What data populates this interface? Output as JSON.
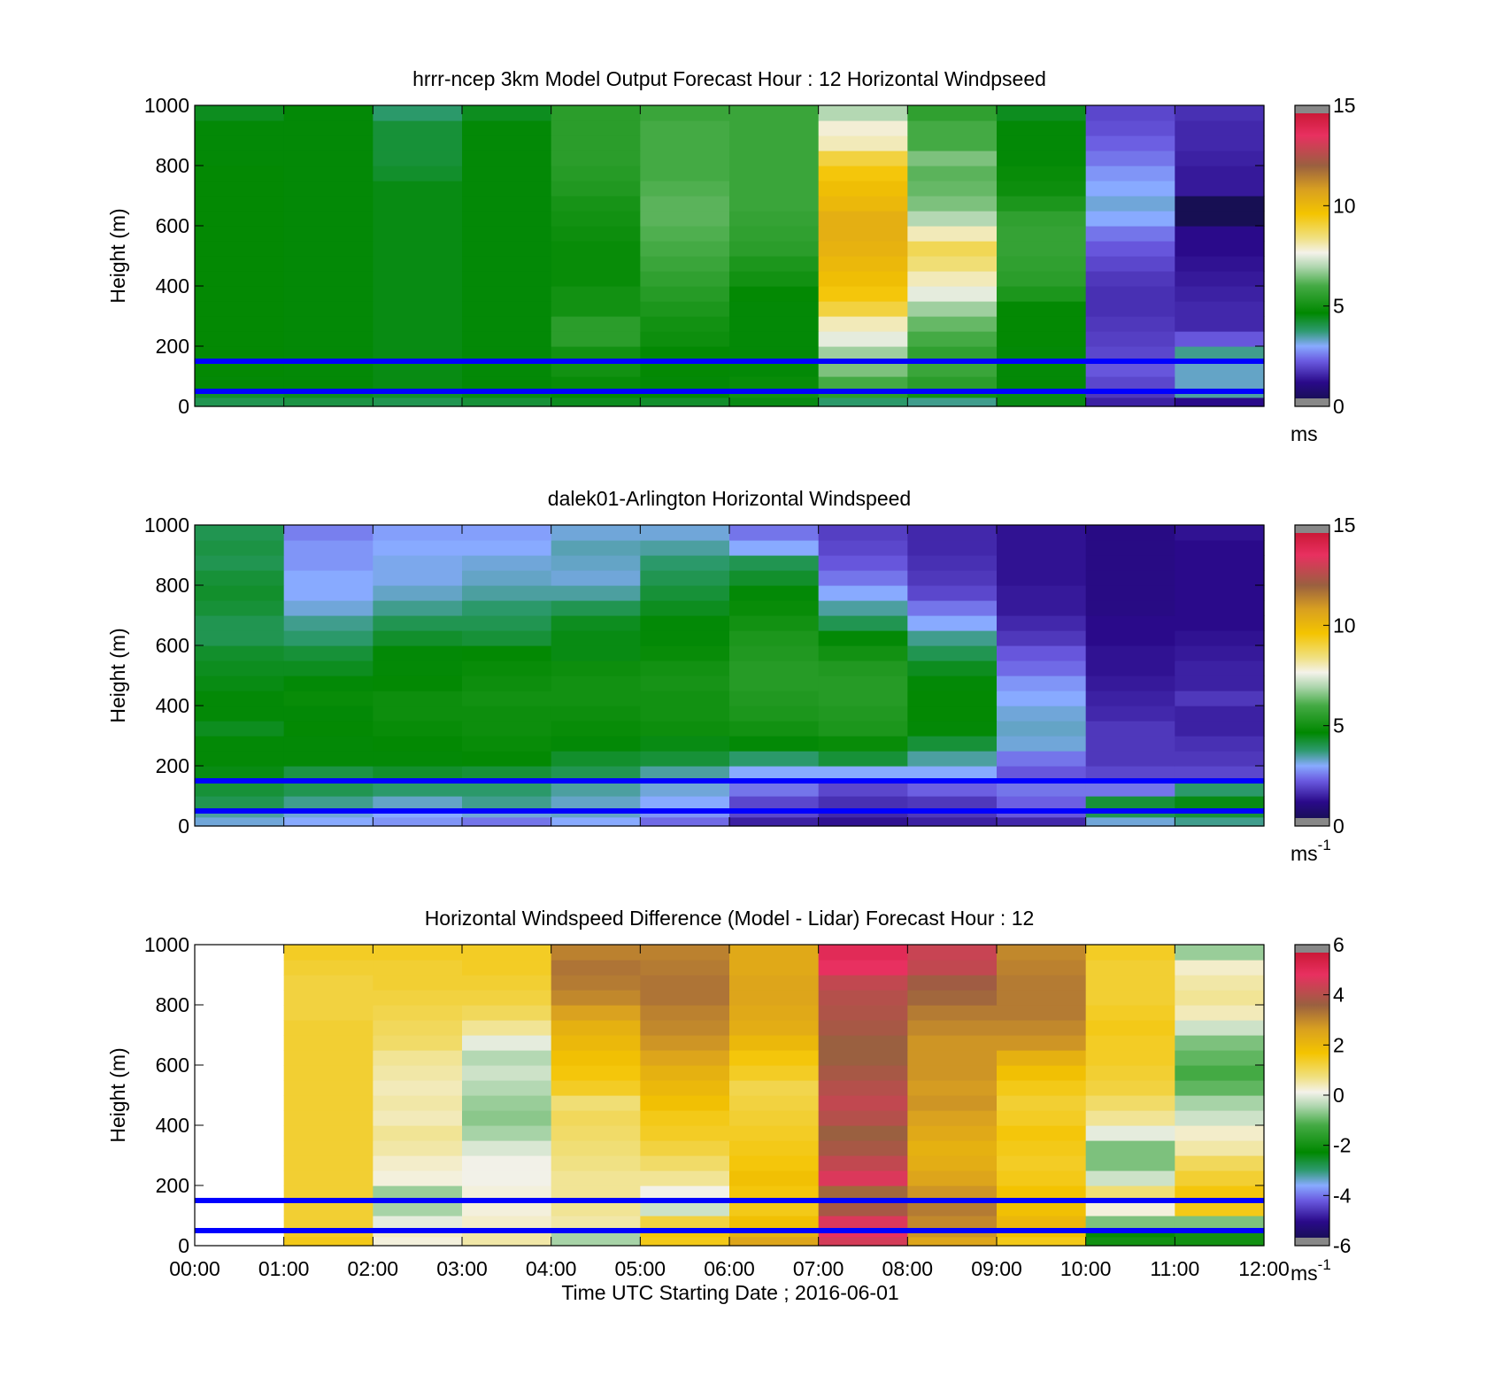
{
  "figure": {
    "xlabel": "Time UTC  Starting Date ; 2016-06-01",
    "x_ticks": [
      "00:00",
      "01:00",
      "02:00",
      "03:00",
      "04:00",
      "05:00",
      "06:00",
      "07:00",
      "08:00",
      "09:00",
      "10:00",
      "11:00",
      "12:00"
    ],
    "reference_heights_m": [
      50,
      150
    ],
    "reference_line_color": "#0000ff"
  },
  "chart_data": [
    {
      "type": "heatmap",
      "title": "hrrr-ncep 3km Model Output   Forecast Hour : 12 Horizontal Windpseed",
      "ylabel": "Height (m)",
      "ylim": [
        0,
        1000
      ],
      "y_ticks": [
        "0",
        "200",
        "400",
        "600",
        "800",
        "1000"
      ],
      "colorbar": {
        "range": [
          0,
          15
        ],
        "ticks": [
          "0",
          "5",
          "10",
          "15"
        ],
        "unit": "ms",
        "unit_sup": "",
        "colormap": "speed"
      },
      "x_hours": [
        0,
        1,
        2,
        3,
        4,
        5,
        6,
        7,
        8,
        9,
        10,
        11,
        12
      ],
      "z_levels_m": [
        0,
        30,
        60,
        100,
        150,
        200,
        250,
        300,
        350,
        400,
        450,
        500,
        550,
        600,
        650,
        700,
        750,
        800,
        850,
        900,
        950,
        1000
      ],
      "values": [
        [
          4.0,
          4.1,
          4.0,
          4.2,
          4.4,
          4.3,
          4.5,
          3.8,
          3.6,
          4.5,
          1.5,
          1.2
        ],
        [
          4.3,
          4.4,
          4.3,
          4.5,
          4.6,
          4.6,
          5.0,
          5.5,
          5.0,
          4.5,
          1.8,
          3.5
        ],
        [
          4.6,
          4.6,
          4.5,
          4.6,
          4.8,
          4.6,
          4.8,
          6.0,
          5.5,
          4.6,
          2.0,
          3.3
        ],
        [
          4.7,
          4.6,
          4.5,
          4.6,
          5.0,
          4.7,
          4.6,
          6.5,
          5.8,
          4.6,
          2.2,
          3.3
        ],
        [
          4.7,
          4.6,
          4.5,
          4.6,
          5.0,
          4.7,
          4.6,
          6.8,
          5.6,
          4.6,
          2.0,
          3.6
        ],
        [
          4.7,
          4.6,
          4.5,
          4.6,
          5.5,
          4.9,
          4.6,
          7.5,
          6.0,
          4.7,
          1.9,
          2.2
        ],
        [
          4.7,
          4.6,
          4.5,
          4.6,
          5.5,
          5.0,
          4.6,
          8.0,
          6.3,
          4.7,
          1.8,
          1.6
        ],
        [
          4.7,
          4.6,
          4.5,
          4.6,
          5.0,
          5.2,
          4.6,
          9.0,
          6.8,
          4.7,
          1.7,
          1.6
        ],
        [
          4.7,
          4.6,
          4.5,
          4.6,
          5.0,
          5.4,
          4.7,
          9.5,
          7.5,
          5.2,
          1.7,
          1.5
        ],
        [
          4.7,
          4.6,
          4.5,
          4.6,
          4.8,
          5.6,
          5.0,
          9.8,
          8.0,
          5.5,
          1.8,
          1.4
        ],
        [
          4.7,
          4.6,
          4.5,
          4.6,
          4.8,
          5.8,
          5.2,
          10.0,
          8.5,
          5.6,
          2.0,
          1.3
        ],
        [
          4.7,
          4.6,
          4.5,
          4.6,
          4.8,
          6.0,
          5.5,
          10.2,
          8.8,
          5.7,
          2.2,
          1.2
        ],
        [
          4.7,
          4.6,
          4.5,
          4.6,
          4.9,
          6.1,
          5.6,
          10.3,
          8.0,
          5.7,
          2.5,
          1.2
        ],
        [
          4.7,
          4.6,
          4.5,
          4.6,
          5.0,
          6.2,
          5.7,
          10.3,
          7.0,
          5.6,
          3.0,
          0.3
        ],
        [
          4.7,
          4.6,
          4.5,
          4.6,
          5.1,
          6.2,
          5.8,
          10.0,
          6.5,
          5.2,
          3.2,
          0.3
        ],
        [
          4.7,
          4.6,
          4.5,
          4.6,
          5.3,
          6.1,
          5.8,
          9.8,
          6.3,
          4.9,
          3.0,
          1.4
        ],
        [
          4.7,
          4.6,
          4.3,
          4.6,
          5.4,
          6.0,
          5.8,
          9.5,
          6.2,
          4.8,
          2.8,
          1.4
        ],
        [
          4.6,
          4.6,
          4.2,
          4.6,
          5.5,
          6.0,
          5.8,
          9.0,
          6.5,
          4.6,
          2.5,
          1.5
        ],
        [
          4.6,
          4.6,
          4.2,
          4.6,
          5.5,
          6.0,
          5.8,
          8.0,
          6.0,
          4.6,
          2.3,
          1.6
        ],
        [
          4.6,
          4.6,
          4.2,
          4.6,
          5.5,
          6.0,
          5.8,
          7.8,
          6.0,
          4.6,
          2.1,
          1.6
        ],
        [
          4.4,
          4.6,
          3.8,
          4.4,
          5.5,
          5.8,
          5.8,
          7.0,
          5.6,
          4.4,
          2.0,
          1.7
        ]
      ]
    },
    {
      "type": "heatmap",
      "title": "dalek01-Arlington  Horizontal Windspeed",
      "ylabel": "Height (m)",
      "ylim": [
        0,
        1000
      ],
      "y_ticks": [
        "0",
        "200",
        "400",
        "600",
        "800",
        "1000"
      ],
      "colorbar": {
        "range": [
          0,
          15
        ],
        "ticks": [
          "0",
          "5",
          "10",
          "15"
        ],
        "unit": "ms",
        "unit_sup": "-1",
        "colormap": "speed"
      },
      "x_hours": [
        0,
        1,
        2,
        3,
        4,
        5,
        6,
        7,
        8,
        9,
        10,
        11,
        12
      ],
      "z_levels_m": [
        0,
        30,
        60,
        100,
        150,
        200,
        250,
        300,
        350,
        400,
        450,
        500,
        550,
        600,
        650,
        700,
        750,
        800,
        850,
        900,
        950,
        1000
      ],
      "values": [
        [
          3.2,
          3.0,
          2.8,
          2.5,
          3.0,
          2.4,
          1.5,
          1.3,
          1.5,
          1.6,
          3.2,
          3.6
        ],
        [
          3.5,
          3.2,
          3.0,
          3.2,
          3.3,
          2.8,
          2.0,
          1.6,
          1.8,
          2.2,
          4.0,
          4.2
        ],
        [
          4.0,
          3.6,
          3.3,
          3.6,
          3.3,
          3.0,
          2.0,
          1.7,
          1.8,
          2.3,
          4.2,
          4.5
        ],
        [
          4.2,
          4.0,
          3.8,
          3.8,
          3.5,
          3.2,
          2.5,
          2.0,
          2.3,
          2.5,
          2.5,
          3.8
        ],
        [
          4.5,
          4.1,
          4.3,
          4.2,
          4.0,
          3.5,
          3.0,
          3.0,
          3.0,
          2.2,
          2.0,
          2.0
        ],
        [
          4.6,
          4.6,
          4.6,
          4.7,
          4.3,
          4.2,
          3.8,
          4.2,
          3.5,
          2.5,
          1.8,
          1.8
        ],
        [
          4.6,
          4.6,
          4.7,
          4.8,
          4.6,
          4.5,
          4.6,
          4.8,
          4.2,
          3.2,
          1.8,
          1.7
        ],
        [
          4.4,
          4.7,
          4.8,
          4.9,
          4.8,
          4.9,
          5.0,
          5.2,
          4.6,
          3.3,
          1.8,
          1.5
        ],
        [
          4.6,
          4.6,
          4.9,
          4.9,
          4.9,
          5.0,
          5.2,
          5.3,
          4.7,
          3.2,
          1.6,
          1.5
        ],
        [
          4.6,
          4.8,
          4.9,
          5.0,
          5.0,
          5.0,
          5.3,
          5.4,
          4.7,
          3.0,
          1.5,
          1.8
        ],
        [
          4.5,
          4.6,
          4.7,
          4.9,
          5.0,
          5.1,
          5.4,
          5.4,
          4.6,
          2.8,
          1.4,
          1.5
        ],
        [
          4.4,
          4.4,
          4.6,
          4.8,
          4.9,
          5.0,
          5.4,
          5.3,
          4.4,
          2.4,
          1.3,
          1.5
        ],
        [
          4.3,
          4.2,
          4.6,
          4.7,
          4.5,
          4.8,
          5.3,
          5.0,
          4.0,
          2.2,
          1.3,
          1.4
        ],
        [
          4.0,
          3.8,
          4.3,
          4.2,
          4.5,
          4.6,
          5.2,
          4.6,
          3.6,
          1.8,
          1.2,
          1.3
        ],
        [
          4.0,
          3.6,
          4.0,
          4.0,
          4.4,
          4.6,
          5.0,
          4.0,
          3.0,
          1.6,
          1.2,
          1.2
        ],
        [
          4.2,
          3.2,
          3.6,
          3.8,
          4.0,
          4.4,
          4.8,
          3.5,
          2.5,
          1.4,
          1.1,
          1.2
        ],
        [
          4.3,
          3.0,
          3.3,
          3.5,
          3.5,
          4.2,
          4.6,
          3.0,
          2.0,
          1.4,
          1.1,
          1.2
        ],
        [
          4.2,
          3.0,
          3.1,
          3.3,
          3.2,
          4.0,
          4.3,
          2.5,
          1.8,
          1.3,
          1.1,
          1.2
        ],
        [
          4.0,
          2.8,
          3.1,
          3.2,
          3.3,
          3.8,
          4.0,
          2.2,
          1.7,
          1.3,
          1.1,
          1.2
        ],
        [
          4.1,
          2.8,
          3.0,
          3.0,
          3.4,
          3.5,
          3.0,
          2.0,
          1.6,
          1.3,
          1.1,
          1.2
        ],
        [
          4.0,
          2.6,
          2.9,
          2.9,
          3.2,
          3.2,
          2.5,
          1.9,
          1.6,
          1.3,
          1.1,
          1.3
        ]
      ]
    },
    {
      "type": "heatmap",
      "title": "Horizontal Windspeed Difference (Model - Lidar) Forecast Hour : 12",
      "ylabel": "Height (m)",
      "ylim": [
        0,
        1000
      ],
      "y_ticks": [
        "0",
        "200",
        "400",
        "600",
        "800",
        "1000"
      ],
      "colorbar": {
        "range": [
          -6,
          6
        ],
        "ticks": [
          "-6",
          "-4",
          "-2",
          "0",
          "2",
          "4",
          "6"
        ],
        "unit": "ms",
        "unit_sup": "-1",
        "colormap": "diff"
      },
      "x_hours": [
        0,
        1,
        2,
        3,
        4,
        5,
        6,
        7,
        8,
        9,
        10,
        11,
        12
      ],
      "z_levels_m": [
        0,
        30,
        60,
        100,
        150,
        200,
        250,
        300,
        350,
        400,
        450,
        500,
        550,
        600,
        650,
        700,
        750,
        800,
        850,
        900,
        950,
        1000
      ],
      "values": [
        [
          null,
          1.5,
          0.2,
          0.5,
          -0.5,
          1.5,
          2.5,
          4.5,
          2.5,
          1.5,
          -2.0,
          -2.0
        ],
        [
          null,
          1.4,
          0.3,
          0.5,
          -0.5,
          1.6,
          2.2,
          4.8,
          2.8,
          1.8,
          -2.2,
          -2.0
        ],
        [
          null,
          1.3,
          0.0,
          0.3,
          0.5,
          1.2,
          1.8,
          4.6,
          3.0,
          2.0,
          -0.8,
          -0.8
        ],
        [
          null,
          1.3,
          -0.5,
          0.2,
          0.6,
          -0.2,
          1.5,
          3.8,
          3.2,
          1.8,
          0.2,
          1.5
        ],
        [
          null,
          1.3,
          -0.6,
          0.2,
          0.6,
          0.1,
          1.6,
          3.5,
          2.8,
          1.7,
          0.8,
          1.6
        ],
        [
          null,
          1.3,
          0.2,
          0.1,
          0.6,
          0.6,
          1.8,
          4.6,
          2.5,
          1.5,
          -0.2,
          1.3
        ],
        [
          null,
          1.3,
          0.3,
          0.1,
          0.7,
          0.9,
          1.6,
          4.2,
          2.3,
          1.4,
          -0.8,
          1.0
        ],
        [
          null,
          1.3,
          0.5,
          -0.1,
          0.8,
          1.2,
          1.5,
          3.8,
          2.2,
          1.5,
          -0.8,
          0.5
        ],
        [
          null,
          1.3,
          0.6,
          -0.5,
          0.9,
          1.4,
          1.4,
          3.6,
          2.4,
          1.6,
          0.0,
          0.3
        ],
        [
          null,
          1.3,
          0.4,
          -0.7,
          1.0,
          1.5,
          1.3,
          4.0,
          2.6,
          1.4,
          0.6,
          -0.2
        ],
        [
          null,
          1.3,
          0.5,
          -0.6,
          0.8,
          1.8,
          1.2,
          4.2,
          2.8,
          1.3,
          0.9,
          -0.5
        ],
        [
          null,
          1.3,
          0.4,
          -0.4,
          1.4,
          2.0,
          1.1,
          4.0,
          2.7,
          1.5,
          1.2,
          -1.0
        ],
        [
          null,
          1.3,
          0.5,
          -0.2,
          1.6,
          2.2,
          1.4,
          3.8,
          2.8,
          1.8,
          1.3,
          -1.2
        ],
        [
          null,
          1.3,
          0.6,
          -0.4,
          1.8,
          2.5,
          1.6,
          3.6,
          2.8,
          2.2,
          1.4,
          -1.0
        ],
        [
          null,
          1.3,
          0.9,
          0.0,
          2.0,
          2.8,
          2.0,
          3.6,
          2.8,
          2.8,
          1.4,
          -0.8
        ],
        [
          null,
          1.3,
          1.0,
          0.6,
          2.2,
          3.0,
          2.3,
          3.8,
          3.0,
          3.0,
          1.5,
          -0.2
        ],
        [
          null,
          1.2,
          1.1,
          1.0,
          2.6,
          3.1,
          2.4,
          3.9,
          3.2,
          3.2,
          1.4,
          0.4
        ],
        [
          null,
          1.2,
          1.2,
          1.2,
          3.0,
          3.3,
          2.5,
          4.0,
          3.5,
          3.2,
          1.3,
          0.6
        ],
        [
          null,
          1.2,
          1.3,
          1.3,
          3.2,
          3.3,
          2.5,
          4.2,
          3.7,
          3.2,
          1.3,
          0.5
        ],
        [
          null,
          1.3,
          1.3,
          1.4,
          3.3,
          3.2,
          2.4,
          4.8,
          4.2,
          3.1,
          1.3,
          0.3
        ],
        [
          null,
          1.4,
          1.4,
          1.4,
          3.1,
          3.1,
          2.4,
          5.0,
          4.3,
          3.0,
          1.4,
          -0.6
        ]
      ]
    }
  ]
}
